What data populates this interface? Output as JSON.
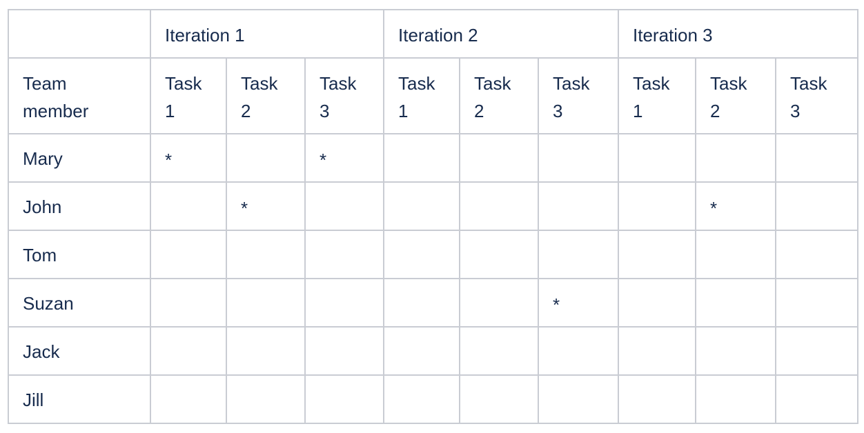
{
  "header": {
    "corner": "",
    "iterations": [
      "Iteration 1",
      "Iteration 2",
      "Iteration 3"
    ],
    "member_label": "Team\nmember",
    "tasks": [
      "Task\n1",
      "Task\n2",
      "Task\n3",
      "Task\n1",
      "Task\n2",
      "Task\n3",
      "Task\n1",
      "Task\n2",
      "Task\n3"
    ]
  },
  "rows": [
    {
      "name": "Mary",
      "cells": [
        "*",
        "",
        "*",
        "",
        "",
        "",
        "",
        "",
        ""
      ]
    },
    {
      "name": "John",
      "cells": [
        "",
        "*",
        "",
        "",
        "",
        "",
        "",
        "*",
        ""
      ]
    },
    {
      "name": "Tom",
      "cells": [
        "",
        "",
        "",
        "",
        "",
        "",
        "",
        "",
        ""
      ]
    },
    {
      "name": "Suzan",
      "cells": [
        "",
        "",
        "",
        "",
        "",
        "*",
        "",
        "",
        ""
      ]
    },
    {
      "name": "Jack",
      "cells": [
        "",
        "",
        "",
        "",
        "",
        "",
        "",
        "",
        ""
      ]
    },
    {
      "name": "Jill",
      "cells": [
        "",
        "",
        "",
        "",
        "",
        "",
        "",
        "",
        ""
      ]
    }
  ],
  "colors": {
    "text": "#172b4d",
    "border": "#c9ccd3"
  }
}
